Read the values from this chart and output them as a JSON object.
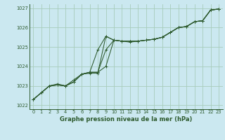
{
  "title": "Graphe pression niveau de la mer (hPa)",
  "bg_color": "#cbe8f0",
  "grid_color": "#a8ccbb",
  "line_color": "#2d5a2d",
  "xlim": [
    -0.5,
    23.5
  ],
  "ylim": [
    1021.8,
    1027.2
  ],
  "xticks": [
    0,
    1,
    2,
    3,
    4,
    5,
    6,
    7,
    8,
    9,
    10,
    11,
    12,
    13,
    14,
    15,
    16,
    17,
    18,
    19,
    20,
    21,
    22,
    23
  ],
  "yticks": [
    1022,
    1023,
    1024,
    1025,
    1026,
    1027
  ],
  "series1_x": [
    0,
    1,
    2,
    3,
    4,
    5,
    6,
    7,
    8,
    9,
    10,
    11,
    12,
    13,
    14,
    15,
    16,
    17,
    18,
    19,
    20,
    21,
    22,
    23
  ],
  "series1_y": [
    1022.3,
    1022.65,
    1023.0,
    1023.05,
    1023.0,
    1023.2,
    1023.6,
    1023.7,
    1023.7,
    1024.0,
    1025.35,
    1025.3,
    1025.3,
    1025.3,
    1025.35,
    1025.4,
    1025.5,
    1025.75,
    1026.0,
    1026.05,
    1026.3,
    1026.35,
    1026.9,
    1026.95
  ],
  "series2_x": [
    0,
    1,
    2,
    3,
    4,
    5,
    6,
    7,
    8,
    9,
    10,
    11,
    12,
    13,
    14,
    15,
    16,
    17,
    18,
    19,
    20,
    21,
    22,
    23
  ],
  "series2_y": [
    1022.3,
    1022.65,
    1023.0,
    1023.05,
    1023.0,
    1023.2,
    1023.6,
    1023.65,
    1023.65,
    1025.55,
    1025.35,
    1025.3,
    1025.3,
    1025.3,
    1025.35,
    1025.4,
    1025.5,
    1025.75,
    1026.0,
    1026.05,
    1026.3,
    1026.35,
    1026.9,
    1026.95
  ],
  "series3_x": [
    0,
    1,
    2,
    3,
    4,
    5,
    6,
    7,
    8,
    9,
    10,
    11,
    12,
    13,
    14,
    15,
    16,
    17,
    18,
    19,
    20,
    21,
    22,
    23
  ],
  "series3_y": [
    1022.3,
    1022.65,
    1023.0,
    1023.05,
    1023.0,
    1023.2,
    1023.6,
    1023.7,
    1024.85,
    1025.55,
    1025.35,
    1025.3,
    1025.3,
    1025.3,
    1025.35,
    1025.4,
    1025.5,
    1025.75,
    1026.0,
    1026.05,
    1026.3,
    1026.35,
    1026.9,
    1026.95
  ],
  "series4_x": [
    0,
    1,
    2,
    3,
    4,
    5,
    6,
    7,
    8,
    9,
    10,
    11,
    12,
    13,
    14,
    15,
    16,
    17,
    18,
    19,
    20,
    21,
    22,
    23
  ],
  "series4_y": [
    1022.3,
    1022.65,
    1023.0,
    1023.1,
    1023.0,
    1023.3,
    1023.6,
    1023.7,
    1023.7,
    1024.85,
    1025.35,
    1025.3,
    1025.25,
    1025.3,
    1025.35,
    1025.4,
    1025.5,
    1025.75,
    1026.0,
    1026.05,
    1026.3,
    1026.35,
    1026.9,
    1026.95
  ],
  "title_fontsize": 6.0,
  "tick_fontsize": 4.8
}
